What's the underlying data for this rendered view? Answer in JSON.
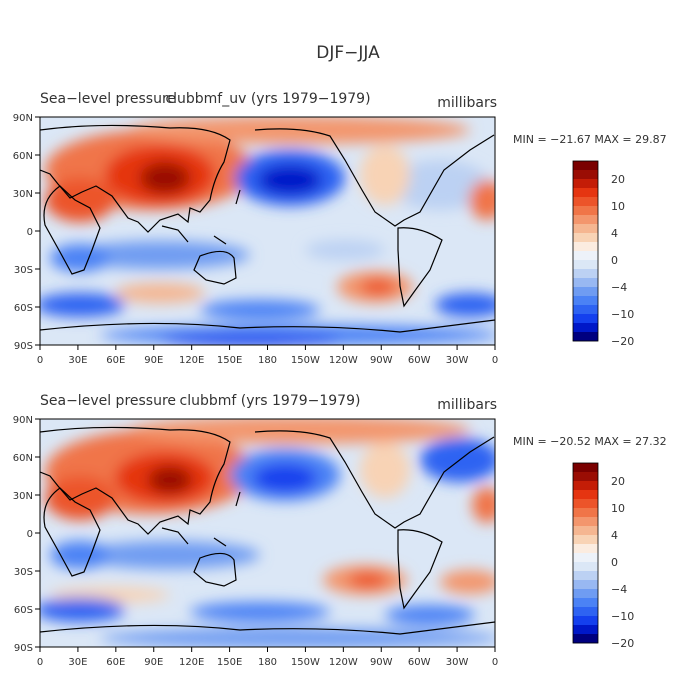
{
  "figure": {
    "title": "DJF−JJA"
  },
  "panels": [
    {
      "id": "top",
      "label_left": "Sea−level pressure",
      "label_center": "clubbmf_uv (yrs 1979−1979)",
      "units": "millibars",
      "stats": "MIN = −21.67  MAX =  29.87"
    },
    {
      "id": "bottom",
      "label_left": "Sea−level pressure",
      "label_center": "clubbmf (yrs 1979−1979)",
      "units": "millibars",
      "stats": "MIN = −20.52  MAX =  27.32"
    }
  ],
  "colorbar": {
    "levels": [
      -25,
      -20,
      -15,
      -10,
      -8,
      -6,
      -4,
      -2,
      -1,
      0,
      1,
      2,
      4,
      6,
      8,
      10,
      15,
      20,
      25
    ],
    "labels": [
      "20",
      "10",
      "4",
      "0",
      "−4",
      "−10",
      "−20"
    ],
    "colors": [
      "#00007f",
      "#0018c8",
      "#1440ee",
      "#2e63f2",
      "#4b82f5",
      "#6f9cf2",
      "#98b8f2",
      "#bcd1f3",
      "#dbe7f6",
      "#edf2f9",
      "#fbece0",
      "#f8d3b5",
      "#f5b691",
      "#f3966d",
      "#f07548",
      "#ec542a",
      "#e53511",
      "#c41d07",
      "#9a0d04",
      "#7a0000"
    ]
  },
  "axes": {
    "lat_ticks": [
      "90N",
      "60N",
      "30N",
      "0",
      "30S",
      "60S",
      "90S"
    ],
    "lon_ticks": [
      "0",
      "30E",
      "60E",
      "90E",
      "120E",
      "150E",
      "180",
      "150W",
      "120W",
      "90W",
      "60W",
      "30W",
      "0"
    ]
  }
}
